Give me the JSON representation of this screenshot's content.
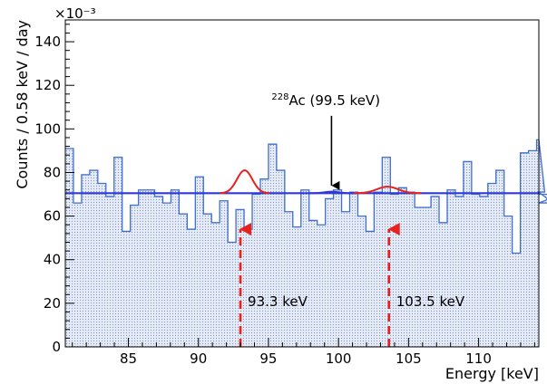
{
  "chart_data": {
    "type": "histogram",
    "title": "",
    "xlabel": "Energy [keV]",
    "ylabel": "Counts / 0.58 keV / day",
    "y_exponent_label": "×10⁻³",
    "xlim": [
      80.5,
      114.3
    ],
    "ylim": [
      0,
      150
    ],
    "x_major_ticks": [
      85,
      90,
      95,
      100,
      105,
      110
    ],
    "y_major_ticks": [
      0,
      20,
      40,
      60,
      80,
      100,
      120,
      140
    ],
    "bin_width": 0.58,
    "bin_start": 80.5,
    "histogram_values": [
      91,
      66,
      79,
      81,
      75,
      69,
      87,
      53,
      65,
      72,
      72,
      69,
      66,
      72,
      61,
      54,
      78,
      61,
      57,
      67,
      48,
      63,
      54,
      70,
      77,
      93,
      81,
      62,
      55,
      72,
      58,
      56,
      68,
      72,
      62,
      71,
      60,
      53,
      71,
      87,
      70,
      73,
      71,
      64,
      64,
      69,
      57,
      72,
      69,
      85,
      70,
      69,
      75,
      81,
      60,
      43,
      89,
      90,
      95,
      71,
      66,
      70
    ],
    "background_fit": {
      "name": "background",
      "type": "constant",
      "value": 70.5,
      "color": "#2e3ad8"
    },
    "peak_fits": [
      {
        "center": 93.3,
        "amplitude": 10.5,
        "sigma": 0.55,
        "base": 70.5,
        "color": "#e8211e"
      },
      {
        "center": 103.5,
        "amplitude": 3.0,
        "sigma": 0.75,
        "base": 70.5,
        "color": "#e8211e"
      },
      {
        "center": 99.5,
        "amplitude": 0.7,
        "sigma": 0.5,
        "base": 70.5,
        "color": "#2e3ad8"
      }
    ],
    "annotations": [
      {
        "id": "ac228",
        "text_sup": "228",
        "text": "Ac (99.5 keV)",
        "arrow_x": 99.5,
        "arrow_from_y": 106,
        "arrow_to_y": 74,
        "color": "#000000",
        "style": "solid"
      },
      {
        "id": "peak1",
        "text": "93.3 keV",
        "arrow_x": 93.0,
        "arrow_from_y": 0,
        "arrow_to_y": 54,
        "color": "#e8211e",
        "style": "dashed"
      },
      {
        "id": "peak2",
        "text": "103.5 keV",
        "arrow_x": 103.6,
        "arrow_from_y": 0,
        "arrow_to_y": 54,
        "color": "#e8211e",
        "style": "dashed"
      }
    ],
    "fill_color": "#c9d4e8",
    "line_color": "#3f6fcf"
  }
}
